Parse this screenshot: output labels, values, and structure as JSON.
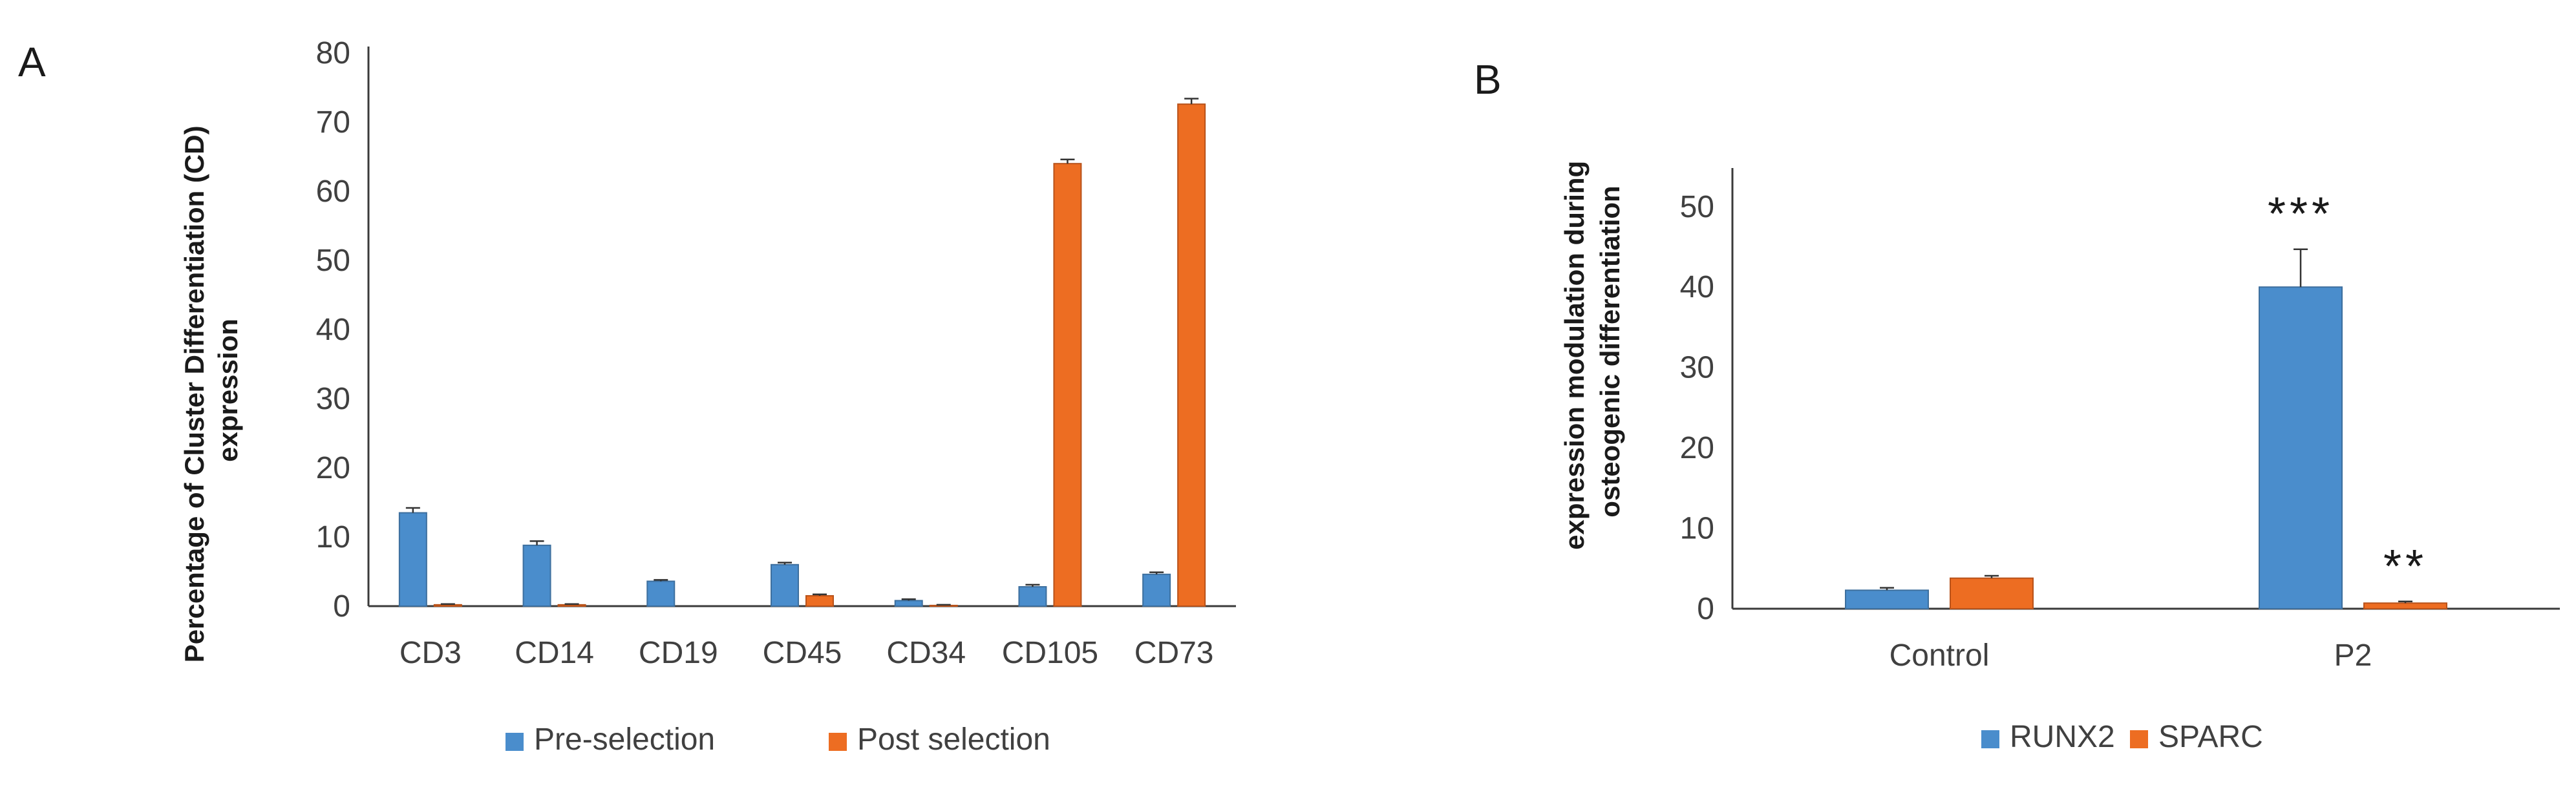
{
  "panels": [
    {
      "label": "A"
    },
    {
      "label": "B"
    }
  ],
  "colors": {
    "blue": "#4a8dcc",
    "orange": "#ed6d22",
    "axis": "#3a3a3a",
    "text": "#404040",
    "bar_edge": "#3d6f9e",
    "bar_edge_orange": "#b8521a"
  },
  "chart_data": [
    {
      "type": "bar",
      "panel": "A",
      "categories": [
        "CD3",
        "CD14",
        "CD19",
        "CD45",
        "CD34",
        "CD105",
        "CD73"
      ],
      "ylabel_lines": [
        "Percentage of Cluster Differentiation (CD)",
        "expression"
      ],
      "xlabel": "",
      "ylim": [
        0,
        80
      ],
      "yticks": [
        0,
        10,
        20,
        30,
        40,
        50,
        60,
        70,
        80
      ],
      "series": [
        {
          "name": "Pre-selection",
          "color": "#4a8dcc",
          "values": [
            13.5,
            8.8,
            3.6,
            6.0,
            0.8,
            2.8,
            4.6
          ],
          "errors": [
            0.7,
            0.6,
            0.2,
            0.3,
            0.2,
            0.3,
            0.3
          ]
        },
        {
          "name": "Post selection",
          "color": "#ed6d22",
          "values": [
            0.2,
            0.2,
            0.0,
            1.5,
            0.1,
            64.0,
            72.6
          ],
          "errors": [
            0.1,
            0.1,
            0.0,
            0.2,
            0.1,
            0.6,
            0.8
          ]
        }
      ],
      "legend_position": "bottom",
      "grid": false
    },
    {
      "type": "bar",
      "panel": "B",
      "categories": [
        "Control",
        "P2"
      ],
      "ylabel_lines": [
        "expression modulation during",
        "osteogenic differentiation"
      ],
      "xlabel": "",
      "ylim": [
        0,
        54
      ],
      "yticks": [
        0,
        10,
        20,
        30,
        40,
        50
      ],
      "series": [
        {
          "name": "RUNX2",
          "color": "#4a8dcc",
          "values": [
            2.3,
            40.0
          ],
          "errors": [
            0.3,
            4.7
          ],
          "annotations": [
            "",
            "***"
          ]
        },
        {
          "name": "SPARC",
          "color": "#ed6d22",
          "values": [
            3.8,
            0.7
          ],
          "errors": [
            0.3,
            0.2
          ],
          "annotations": [
            "",
            "**"
          ]
        }
      ],
      "legend_position": "bottom",
      "grid": false
    }
  ]
}
